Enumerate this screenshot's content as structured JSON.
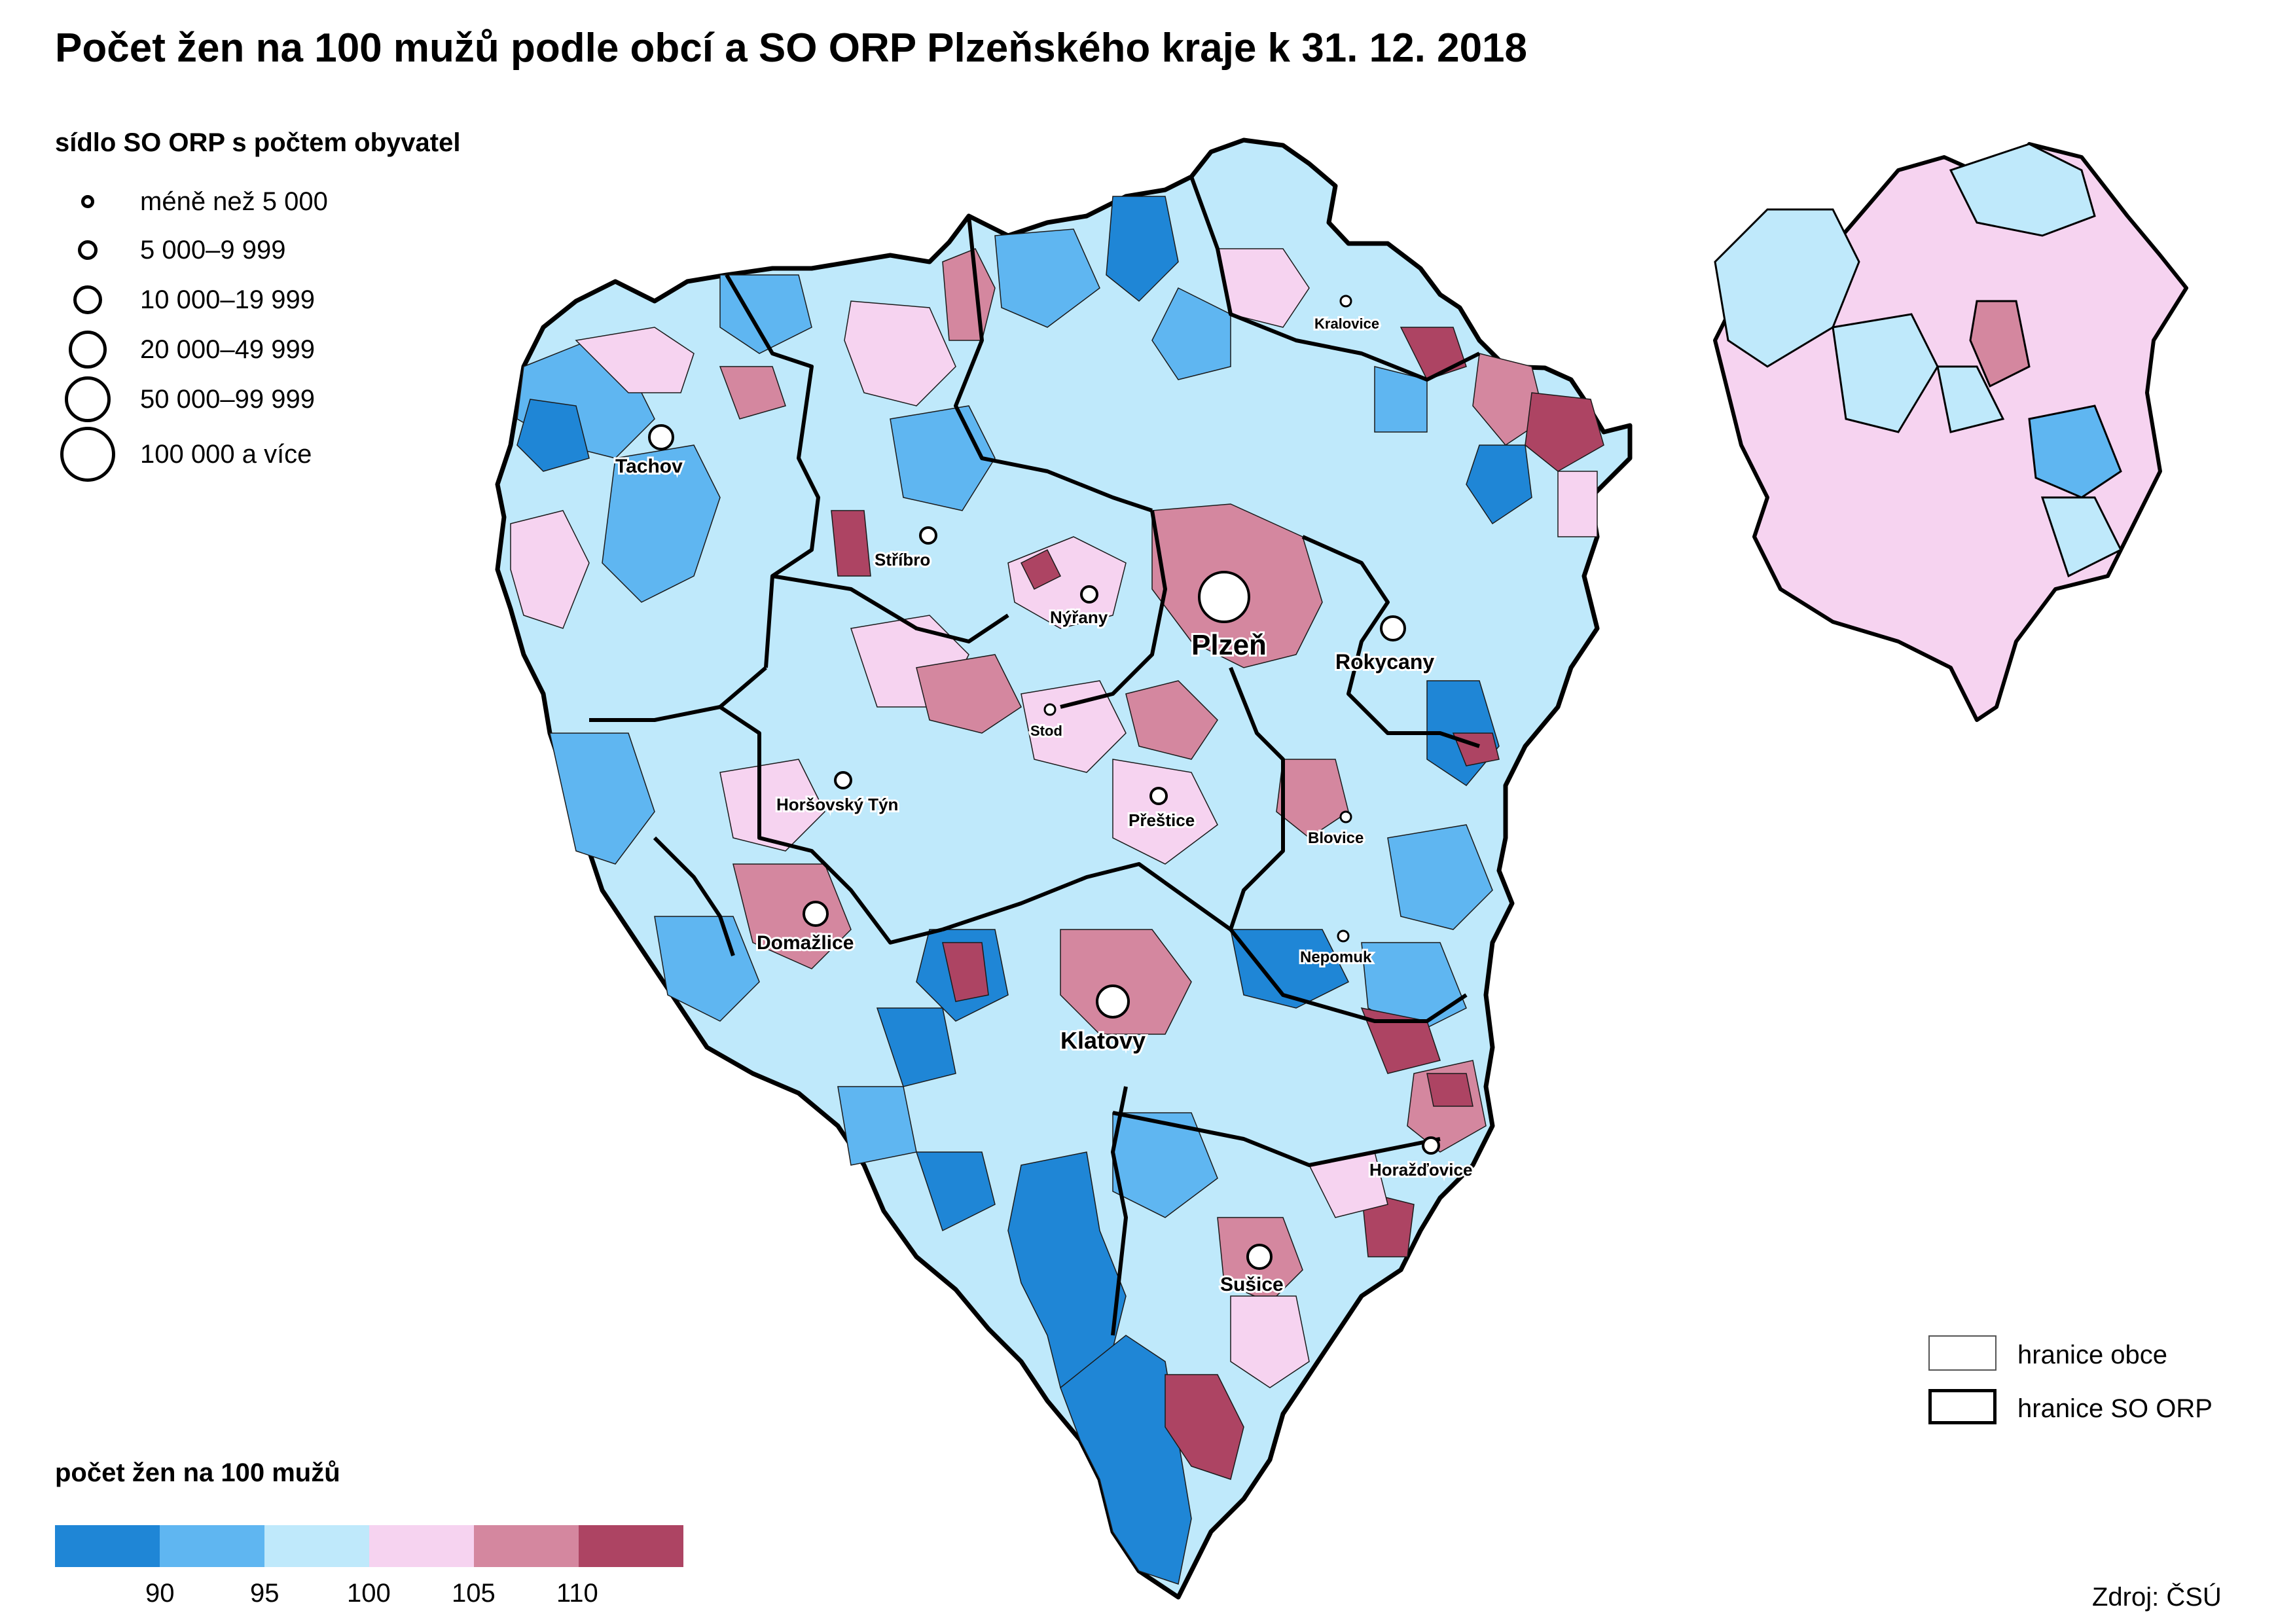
{
  "title": "Počet žen na 100 mužů podle obcí a SO ORP Plzeňského kraje k 31. 12. 2018",
  "sidlo_legend": {
    "heading": "sídlo SO ORP s počtem obyvatel",
    "items": [
      {
        "label": "méně než 5 000"
      },
      {
        "label": "5 000–9 999"
      },
      {
        "label": "10 000–19 999"
      },
      {
        "label": "20 000–49 999"
      },
      {
        "label": "50 000–99 999"
      },
      {
        "label": "100 000 a více"
      }
    ]
  },
  "choropleth_legend": {
    "heading": "počet žen na 100 mužů",
    "colors": [
      "#1f86d6",
      "#5fb6f1",
      "#bfe9fb",
      "#f6d3f0",
      "#d4879f",
      "#ad4463"
    ],
    "ticks": [
      "90",
      "95",
      "100",
      "105",
      "110"
    ]
  },
  "line_legend": [
    {
      "label": "hranice obce",
      "style": "thin"
    },
    {
      "label": "hranice SO ORP",
      "style": "thick"
    }
  ],
  "towns": [
    {
      "name": "Plzeň",
      "size": 5
    },
    {
      "name": "Klatovy",
      "size": 3
    },
    {
      "name": "Rokycany",
      "size": 2
    },
    {
      "name": "Tachov",
      "size": 2
    },
    {
      "name": "Domažlice",
      "size": 2
    },
    {
      "name": "Sušice",
      "size": 2
    },
    {
      "name": "Stříbro",
      "size": 1
    },
    {
      "name": "Nýřany",
      "size": 1
    },
    {
      "name": "Horšovský Týn",
      "size": 1
    },
    {
      "name": "Přeštice",
      "size": 1
    },
    {
      "name": "Blovice",
      "size": 0
    },
    {
      "name": "Nepomuk",
      "size": 0
    },
    {
      "name": "Horažďovice",
      "size": 1
    },
    {
      "name": "Kralovice",
      "size": 0
    },
    {
      "name": "Stod",
      "size": 0
    }
  ],
  "source": "Zdroj: ČSÚ"
}
